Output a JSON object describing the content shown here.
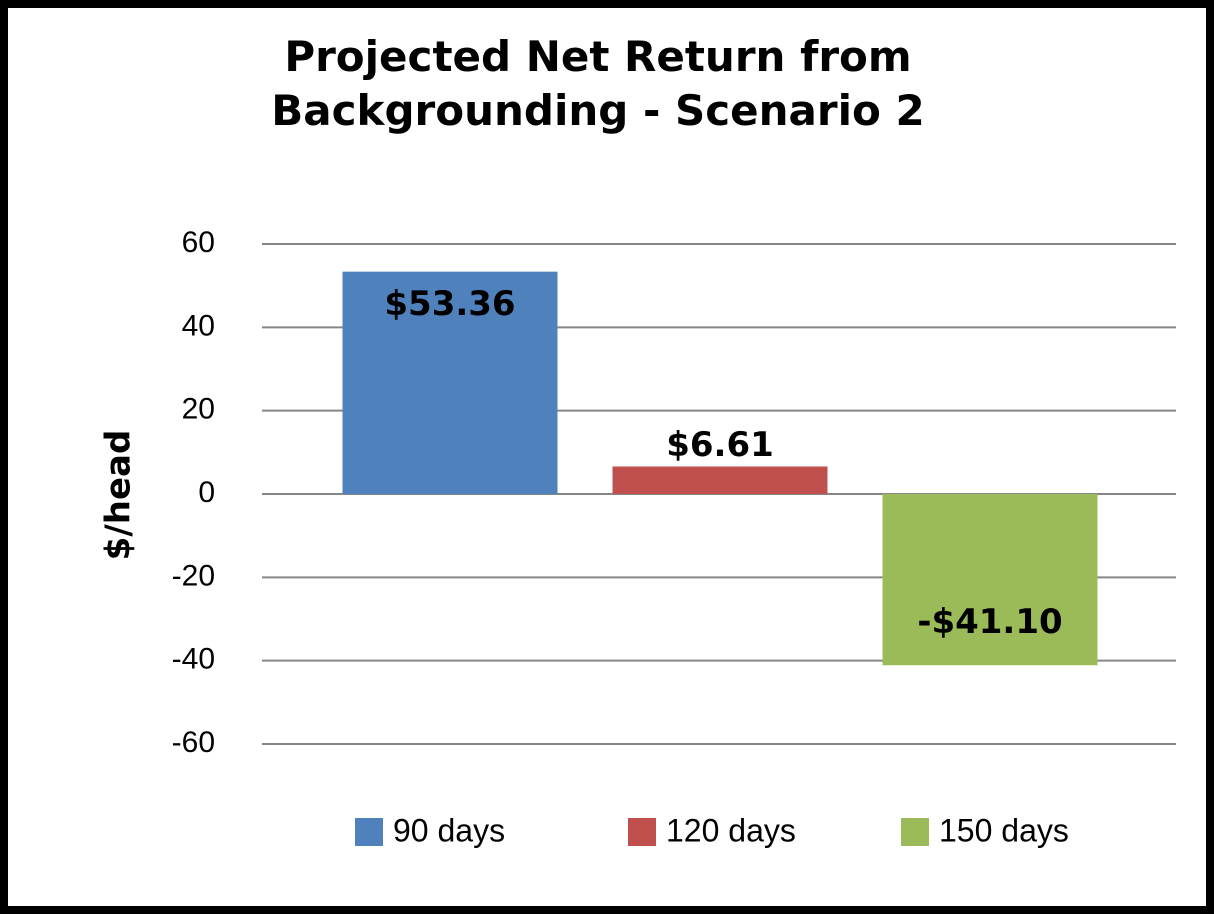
{
  "chart_data": {
    "type": "bar",
    "title": "Projected Net Return from Backgrounding - Scenario 2",
    "y_label": "$/head",
    "series": [
      {
        "name": "90 days",
        "color": "#4f81bd",
        "values": [
          53.36
        ],
        "value_labels": [
          "$53.36"
        ]
      },
      {
        "name": "120 days",
        "color": "#c0504d",
        "values": [
          6.61
        ],
        "value_labels": [
          "$6.61"
        ]
      },
      {
        "name": "150 days",
        "color": "#9bbb59",
        "values": [
          -41.1
        ],
        "value_labels": [
          "-$41.10"
        ]
      }
    ],
    "ylim": [
      -60,
      60
    ],
    "yticks": [
      -60,
      -40,
      -20,
      0,
      20,
      40,
      60
    ],
    "grid": true,
    "legend": "bottom"
  }
}
